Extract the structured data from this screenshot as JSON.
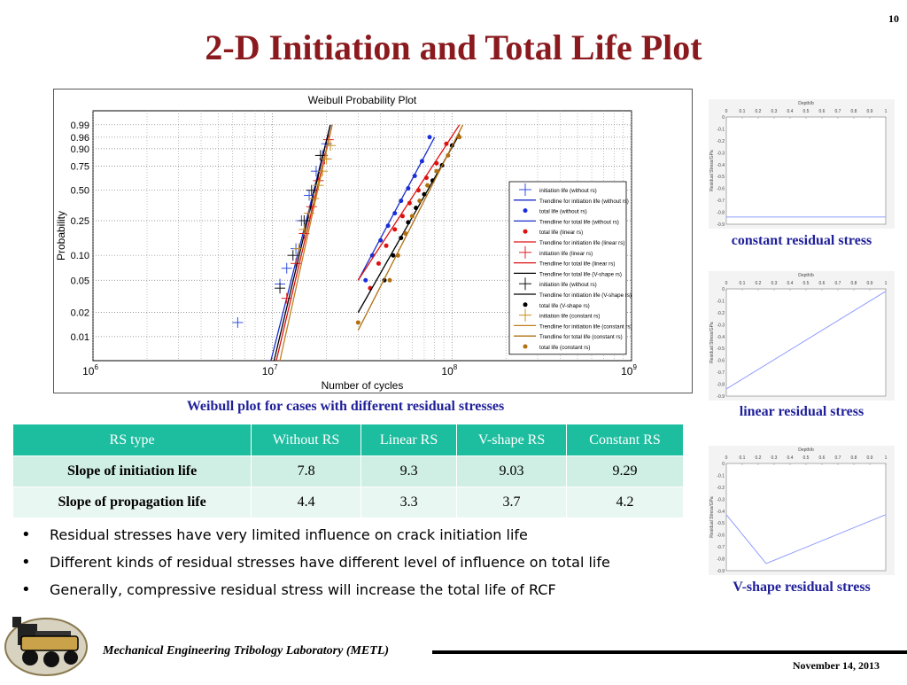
{
  "slide": {
    "number": "10",
    "title": "2-D Initiation and Total Life Plot"
  },
  "weibull_caption": "Weibull plot for cases with different residual stresses",
  "table": {
    "headers": [
      "RS type",
      "Without RS",
      "Linear RS",
      "V-shape RS",
      "Constant RS"
    ],
    "rows": [
      {
        "label": "Slope of initiation life",
        "values": [
          "7.8",
          "9.3",
          "9.03",
          "9.29"
        ]
      },
      {
        "label": "Slope of propagation life",
        "values": [
          "4.4",
          "3.3",
          "3.7",
          "4.2"
        ]
      }
    ]
  },
  "bullets": [
    "Residual stresses have very limited influence on crack initiation life",
    "Different kinds of residual stresses have different level of influence on total life",
    "Generally, compressive residual stress will increase the total life of RCF"
  ],
  "rs_captions": {
    "constant": "constant residual stress",
    "linear": "linear residual stress",
    "vshape": "V-shape residual stress"
  },
  "footer": {
    "lab": "Mechanical Engineering Tribology Laboratory (METL)",
    "date": "November 14, 2013"
  },
  "colors": {
    "title": "#8b1a1f",
    "caption": "#1f1f9a",
    "table_header": "#1dbd9f",
    "table_row_a": "#cfeee4",
    "table_row_b": "#e9f7f2"
  },
  "chart_data": [
    {
      "type": "scatter",
      "title": "Weibull Probability Plot",
      "xlabel": "Number of cycles",
      "ylabel": "Probability",
      "x_scale": "log",
      "xlim": [
        1000000,
        1000000000
      ],
      "x_ticks": [
        1000000,
        10000000,
        100000000,
        1000000000
      ],
      "x_tick_base": "10",
      "x_tick_exponents": [
        "6",
        "7",
        "8",
        "9"
      ],
      "y_scale": "weibull",
      "ylim": [
        0.005,
        0.999
      ],
      "y_ticks": [
        0.01,
        0.02,
        0.05,
        0.1,
        0.25,
        0.5,
        0.75,
        0.9,
        0.96,
        0.99
      ],
      "y_tick_labels": [
        "0.01",
        "0.02",
        "0.05",
        "0.10",
        "0.25",
        "0.50",
        "0.75",
        "0.90",
        "0.96",
        "0.99"
      ],
      "grid": true,
      "legend_position": "right",
      "series": [
        {
          "name": "initiation life (without rs)",
          "kind": "points",
          "marker": "plus",
          "color": "#3050e0",
          "x": [
            6400000,
            11000000,
            12000000,
            13500000,
            14500000,
            16000000,
            17500000,
            19000000,
            20000000
          ],
          "y": [
            0.015,
            0.045,
            0.07,
            0.12,
            0.25,
            0.45,
            0.7,
            0.85,
            0.93
          ]
        },
        {
          "name": "Trendline for initiation life (without rs)",
          "kind": "line",
          "color": "#1a2ec8",
          "x": [
            9800000,
            21000000
          ],
          "y": [
            0.005,
            0.99
          ]
        },
        {
          "name": "total life (without rs)",
          "kind": "points",
          "marker": "dot",
          "color": "#1a2ee0",
          "x": [
            33000000,
            36000000,
            40000000,
            44000000,
            48000000,
            52000000,
            57000000,
            62000000,
            68000000,
            75000000
          ],
          "y": [
            0.05,
            0.1,
            0.15,
            0.22,
            0.3,
            0.4,
            0.52,
            0.65,
            0.8,
            0.96
          ]
        },
        {
          "name": "Trendline for total life (without rs)",
          "kind": "line",
          "color": "#1a2ec8",
          "x": [
            30000000,
            80000000
          ],
          "y": [
            0.05,
            0.96
          ]
        },
        {
          "name": "total life (linear rs)",
          "kind": "points",
          "marker": "dot",
          "color": "#e01010",
          "x": [
            35000000,
            39000000,
            43000000,
            48000000,
            53000000,
            58000000,
            65000000,
            72000000,
            82000000,
            93000000
          ],
          "y": [
            0.04,
            0.08,
            0.13,
            0.2,
            0.28,
            0.38,
            0.5,
            0.63,
            0.78,
            0.93
          ]
        },
        {
          "name": "Trendline for initiation life (linear rs)",
          "kind": "line",
          "color": "#e01010",
          "x": [
            10500000,
            21500000
          ],
          "y": [
            0.005,
            0.99
          ]
        },
        {
          "name": "initiation life (linear rs)",
          "kind": "points",
          "marker": "plus",
          "color": "#e02020",
          "x": [
            12000000,
            13500000,
            15000000,
            16500000,
            18000000,
            19500000,
            20500000
          ],
          "y": [
            0.03,
            0.08,
            0.18,
            0.35,
            0.6,
            0.82,
            0.95
          ]
        },
        {
          "name": "Trendline for total life (linear rs)",
          "kind": "line",
          "color": "#e01010",
          "x": [
            30000000,
            110000000
          ],
          "y": [
            0.05,
            0.99
          ]
        },
        {
          "name": "Trendline for total life (V-shape rs)",
          "kind": "line",
          "color": "#000000",
          "x": [
            30000000,
            110000000
          ],
          "y": [
            0.02,
            0.97
          ]
        },
        {
          "name": "initiation life (without rs)",
          "kind": "points",
          "marker": "plus",
          "color": "#101010",
          "x": [
            11000000,
            13000000,
            15000000,
            16500000,
            18500000
          ],
          "y": [
            0.04,
            0.1,
            0.25,
            0.5,
            0.85
          ]
        },
        {
          "name": "Trendline for initiation life (V-shape rs)",
          "kind": "line",
          "color": "#000000",
          "x": [
            10200000,
            21000000
          ],
          "y": [
            0.005,
            0.99
          ]
        },
        {
          "name": "total life (V-shape rs)",
          "kind": "points",
          "marker": "dot",
          "color": "#000000",
          "x": [
            42000000,
            47000000,
            52000000,
            57000000,
            63000000,
            70000000,
            78000000,
            88000000,
            100000000
          ],
          "y": [
            0.05,
            0.1,
            0.16,
            0.24,
            0.34,
            0.46,
            0.6,
            0.76,
            0.92
          ]
        },
        {
          "name": "initiation life (constant rs)",
          "kind": "points",
          "marker": "plus",
          "color": "#c89020",
          "x": [
            14000000,
            15000000,
            16000000,
            17000000,
            18000000,
            19000000,
            20000000,
            21000000
          ],
          "y": [
            0.12,
            0.2,
            0.3,
            0.42,
            0.55,
            0.7,
            0.82,
            0.92
          ]
        },
        {
          "name": "Trendline for initiation life (constant rs)",
          "kind": "line",
          "color": "#c08020",
          "x": [
            11000000,
            21500000
          ],
          "y": [
            0.005,
            0.99
          ]
        },
        {
          "name": "Trendline for total life (constant rs)",
          "kind": "line",
          "color": "#b07010",
          "x": [
            30000000,
            115000000
          ],
          "y": [
            0.012,
            0.99
          ]
        },
        {
          "name": "total life (constant rs)",
          "kind": "points",
          "marker": "dot",
          "color": "#b07010",
          "x": [
            30000000,
            45000000,
            50000000,
            55000000,
            60000000,
            66000000,
            73000000,
            82000000,
            95000000,
            110000000
          ],
          "y": [
            0.015,
            0.05,
            0.1,
            0.18,
            0.28,
            0.4,
            0.55,
            0.7,
            0.85,
            0.96
          ]
        }
      ]
    },
    {
      "type": "line",
      "title": "Depth/b",
      "ylabel": "Residual Stress/GPa",
      "xlim": [
        0,
        1
      ],
      "ylim": [
        -0.9,
        0
      ],
      "x_ticks": [
        "0",
        "0.1",
        "0.2",
        "0.3",
        "0.4",
        "0.5",
        "0.6",
        "0.7",
        "0.8",
        "0.9",
        "1"
      ],
      "y_ticks": [
        "0",
        "-0.1",
        "-0.2",
        "-0.3",
        "-0.4",
        "-0.5",
        "-0.6",
        "-0.7",
        "-0.8",
        "-0.9"
      ],
      "x": [
        0,
        1
      ],
      "y": [
        -0.84,
        -0.84
      ]
    },
    {
      "type": "line",
      "title": "Depth/b",
      "ylabel": "Residual Stress/GPa",
      "xlim": [
        0,
        1
      ],
      "ylim": [
        -0.9,
        0
      ],
      "x_ticks": [
        "0",
        "0.1",
        "0.2",
        "0.3",
        "0.4",
        "0.5",
        "0.6",
        "0.7",
        "0.8",
        "0.9",
        "1"
      ],
      "y_ticks": [
        "0",
        "-0.1",
        "-0.2",
        "-0.3",
        "-0.4",
        "-0.5",
        "-0.6",
        "-0.7",
        "-0.8",
        "-0.9"
      ],
      "x": [
        0,
        1
      ],
      "y": [
        -0.84,
        -0.02
      ]
    },
    {
      "type": "line",
      "title": "Depth/b",
      "ylabel": "Residual Stress/GPa",
      "xlim": [
        0,
        1
      ],
      "ylim": [
        -0.9,
        0
      ],
      "x_ticks": [
        "0",
        "0.1",
        "0.2",
        "0.3",
        "0.4",
        "0.5",
        "0.6",
        "0.7",
        "0.8",
        "0.9",
        "1"
      ],
      "y_ticks": [
        "0",
        "-0.1",
        "-0.2",
        "-0.3",
        "-0.4",
        "-0.5",
        "-0.6",
        "-0.7",
        "-0.8",
        "-0.9"
      ],
      "x": [
        0,
        0.25,
        1
      ],
      "y": [
        -0.43,
        -0.84,
        -0.43
      ]
    }
  ]
}
